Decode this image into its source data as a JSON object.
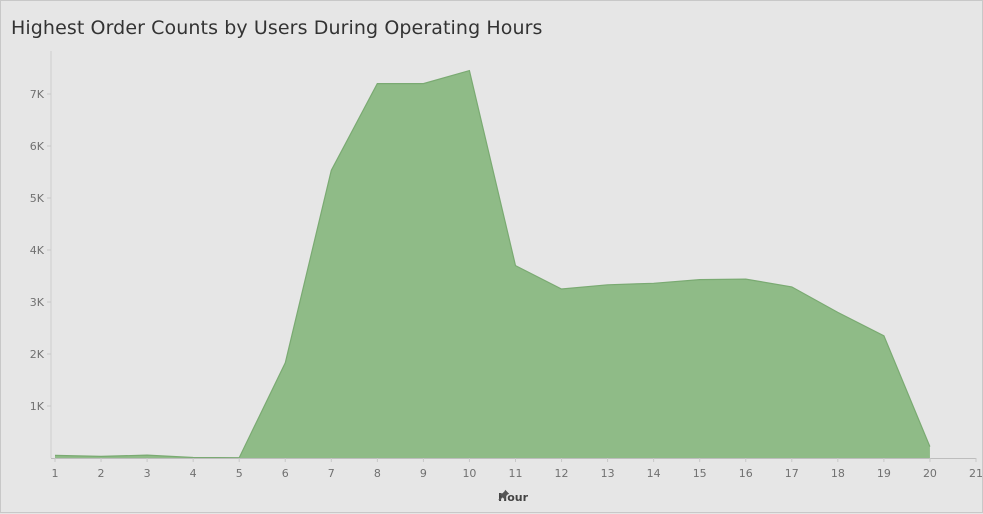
{
  "chart_data": {
    "type": "area",
    "title": "Highest Order Counts by Users During Operating Hours",
    "xlabel": "Hour",
    "ylabel": "",
    "x": [
      1,
      2,
      3,
      4,
      5,
      6,
      7,
      8,
      9,
      10,
      11,
      12,
      13,
      14,
      15,
      16,
      17,
      18,
      19,
      20
    ],
    "values": [
      50,
      30,
      55,
      10,
      5,
      1830,
      5530,
      7200,
      7200,
      7450,
      3700,
      3250,
      3330,
      3360,
      3430,
      3440,
      3290,
      2800,
      2350,
      220
    ],
    "xlim": [
      0.9,
      21
    ],
    "ylim": [
      0,
      7600
    ],
    "x_ticks": [
      "1",
      "2",
      "3",
      "4",
      "5",
      "6",
      "7",
      "8",
      "9",
      "10",
      "11",
      "12",
      "13",
      "14",
      "15",
      "16",
      "17",
      "18",
      "19",
      "20",
      "21"
    ],
    "y_ticks": [
      {
        "value": 1000,
        "label": "1K"
      },
      {
        "value": 2000,
        "label": "2K"
      },
      {
        "value": 3000,
        "label": "3K"
      },
      {
        "value": 4000,
        "label": "4K"
      },
      {
        "value": 5000,
        "label": "5K"
      },
      {
        "value": 6000,
        "label": "6K"
      },
      {
        "value": 7000,
        "label": "7K"
      }
    ],
    "fill_color": "#8fbb87",
    "line_color": "#7aaa72",
    "grid": false
  },
  "icons": {
    "axis_pin": "pin-icon"
  }
}
